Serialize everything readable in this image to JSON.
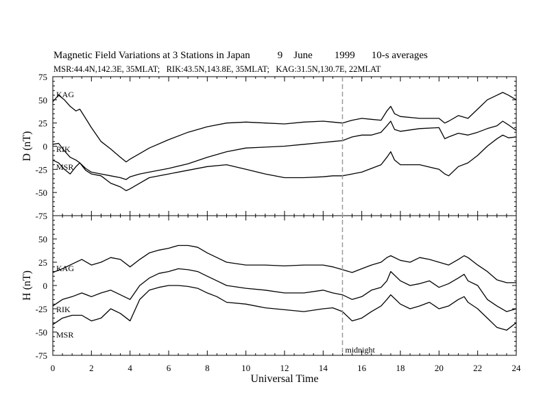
{
  "chart_data": {
    "type": "line",
    "title_parts": [
      "Magnetic Field Variations at 3 Stations in Japan",
      "9",
      "June",
      "1999",
      "10-s averages"
    ],
    "subtitle": "MSR:44.4N,142.3E, 35MLAT;   RIK:43.5N,143.8E, 35MLAT;   KAG:31.5N,130.7E, 22MLAT",
    "xlabel": "Universal Time",
    "xlim": [
      0,
      24
    ],
    "xticks": [
      0,
      2,
      4,
      6,
      8,
      10,
      12,
      14,
      16,
      18,
      20,
      22,
      24
    ],
    "marker": {
      "x": 15,
      "label": "midnight"
    },
    "panels": [
      {
        "ylabel": "D (nT)",
        "ylim": [
          -75,
          75
        ],
        "yticks": [
          -75,
          -50,
          -25,
          0,
          25,
          50,
          75
        ],
        "series": [
          {
            "name": "KAG",
            "x": [
              0,
              0.3,
              0.6,
              0.9,
              1.2,
              1.4,
              1.7,
              2,
              2.5,
              3,
              3.5,
              3.8,
              4,
              4.5,
              5,
              6,
              7,
              8,
              9,
              10,
              11,
              12,
              13,
              14,
              14.5,
              15,
              15.5,
              16,
              16.5,
              17,
              17.3,
              17.5,
              17.7,
              18,
              19,
              20,
              20.3,
              20.5,
              21,
              21.5,
              22,
              22.5,
              23,
              23.3,
              23.6,
              24
            ],
            "y": [
              48,
              55,
              50,
              43,
              38,
              40,
              30,
              20,
              5,
              -3,
              -12,
              -17,
              -14,
              -8,
              -2,
              7,
              15,
              21,
              25,
              26,
              25,
              24,
              26,
              27,
              26,
              25,
              28,
              30,
              29,
              28,
              38,
              43,
              35,
              32,
              30,
              30,
              25,
              27,
              33,
              30,
              40,
              50,
              55,
              58,
              55,
              50
            ]
          },
          {
            "name": "RIK",
            "x": [
              0,
              0.3,
              0.6,
              0.9,
              1.2,
              1.4,
              1.7,
              2,
              2.5,
              3,
              3.5,
              3.8,
              4,
              4.5,
              5,
              6,
              7,
              8,
              9,
              10,
              11,
              12,
              13,
              14,
              14.5,
              15,
              15.5,
              16,
              16.5,
              17,
              17.3,
              17.5,
              17.7,
              18,
              19,
              20,
              20.3,
              20.5,
              21,
              21.5,
              22,
              22.5,
              23,
              23.3,
              23.6,
              24
            ],
            "y": [
              2,
              3,
              -5,
              -12,
              -15,
              -18,
              -24,
              -28,
              -30,
              -32,
              -34,
              -36,
              -33,
              -30,
              -28,
              -24,
              -19,
              -12,
              -6,
              -2,
              -1,
              0,
              2,
              4,
              5,
              6,
              10,
              12,
              12,
              15,
              22,
              27,
              18,
              16,
              19,
              20,
              8,
              10,
              14,
              12,
              15,
              19,
              22,
              27,
              23,
              17
            ]
          },
          {
            "name": "MSR",
            "x": [
              0,
              0.3,
              0.6,
              0.9,
              1.2,
              1.4,
              1.7,
              2,
              2.5,
              3,
              3.5,
              3.8,
              4,
              4.5,
              5,
              6,
              7,
              8,
              9,
              10,
              11,
              12,
              13,
              14,
              14.5,
              15,
              15.5,
              16,
              16.5,
              17,
              17.3,
              17.5,
              17.7,
              18,
              19,
              20,
              20.3,
              20.5,
              21,
              21.5,
              22,
              22.5,
              23,
              23.3,
              23.6,
              24
            ],
            "y": [
              -15,
              -18,
              -25,
              -30,
              -22,
              -18,
              -26,
              -30,
              -32,
              -40,
              -44,
              -48,
              -46,
              -40,
              -34,
              -30,
              -26,
              -22,
              -20,
              -25,
              -30,
              -34,
              -34,
              -33,
              -32,
              -32,
              -30,
              -28,
              -24,
              -20,
              -12,
              -6,
              -15,
              -20,
              -20,
              -25,
              -30,
              -32,
              -22,
              -18,
              -10,
              0,
              8,
              12,
              9,
              10
            ]
          }
        ]
      },
      {
        "ylabel": "H (nT)",
        "ylim": [
          -75,
          75
        ],
        "yticks": [
          -75,
          -50,
          -25,
          0,
          25,
          50,
          75
        ],
        "series": [
          {
            "name": "KAG",
            "x": [
              0,
              0.5,
              1,
              1.5,
              2,
              2.5,
              3,
              3.5,
              4,
              4.5,
              5,
              5.5,
              6,
              6.5,
              7,
              7.5,
              8,
              8.5,
              9,
              10,
              11,
              12,
              13,
              14,
              14.5,
              15,
              15.5,
              16,
              16.5,
              17,
              17.3,
              17.5,
              18,
              18.5,
              19,
              19.5,
              20,
              20.5,
              21,
              21.3,
              21.5,
              22,
              22.5,
              23,
              23.5,
              24
            ],
            "y": [
              14,
              18,
              23,
              28,
              22,
              25,
              30,
              28,
              20,
              28,
              35,
              38,
              40,
              43,
              43,
              41,
              35,
              30,
              25,
              22,
              22,
              21,
              22,
              22,
              20,
              17,
              14,
              18,
              22,
              25,
              30,
              32,
              27,
              25,
              30,
              28,
              25,
              22,
              28,
              32,
              30,
              22,
              15,
              6,
              3,
              3
            ]
          },
          {
            "name": "RIK",
            "x": [
              0,
              0.5,
              1,
              1.5,
              2,
              2.5,
              3,
              3.5,
              4,
              4.5,
              5,
              5.5,
              6,
              6.5,
              7,
              7.5,
              8,
              8.5,
              9,
              10,
              11,
              12,
              13,
              14,
              14.5,
              15,
              15.5,
              16,
              16.5,
              17,
              17.3,
              17.5,
              18,
              18.5,
              19,
              19.5,
              20,
              20.5,
              21,
              21.3,
              21.5,
              22,
              22.5,
              23,
              23.5,
              24
            ],
            "y": [
              -22,
              -15,
              -12,
              -8,
              -12,
              -8,
              -5,
              -10,
              -15,
              0,
              8,
              13,
              15,
              18,
              17,
              15,
              10,
              5,
              0,
              -3,
              -5,
              -8,
              -8,
              -5,
              -8,
              -10,
              -15,
              -12,
              -5,
              -2,
              5,
              15,
              5,
              0,
              2,
              5,
              -2,
              2,
              8,
              12,
              5,
              0,
              -15,
              -22,
              -28,
              -25
            ]
          },
          {
            "name": "MSR",
            "x": [
              0,
              0.5,
              1,
              1.5,
              2,
              2.5,
              3,
              3.5,
              4,
              4.5,
              5,
              5.5,
              6,
              6.5,
              7,
              7.5,
              8,
              8.5,
              9,
              10,
              11,
              12,
              13,
              14,
              14.5,
              15,
              15.5,
              16,
              16.5,
              17,
              17.3,
              17.5,
              18,
              18.5,
              19,
              19.5,
              20,
              20.5,
              21,
              21.3,
              21.5,
              22,
              22.5,
              23,
              23.5,
              24
            ],
            "y": [
              -42,
              -35,
              -32,
              -32,
              -38,
              -35,
              -25,
              -30,
              -38,
              -15,
              -5,
              -2,
              0,
              0,
              -1,
              -3,
              -8,
              -12,
              -18,
              -20,
              -24,
              -26,
              -28,
              -25,
              -24,
              -28,
              -38,
              -35,
              -28,
              -22,
              -15,
              -10,
              -20,
              -25,
              -22,
              -18,
              -25,
              -22,
              -15,
              -12,
              -18,
              -25,
              -35,
              -45,
              -48,
              -40
            ]
          }
        ]
      }
    ]
  }
}
